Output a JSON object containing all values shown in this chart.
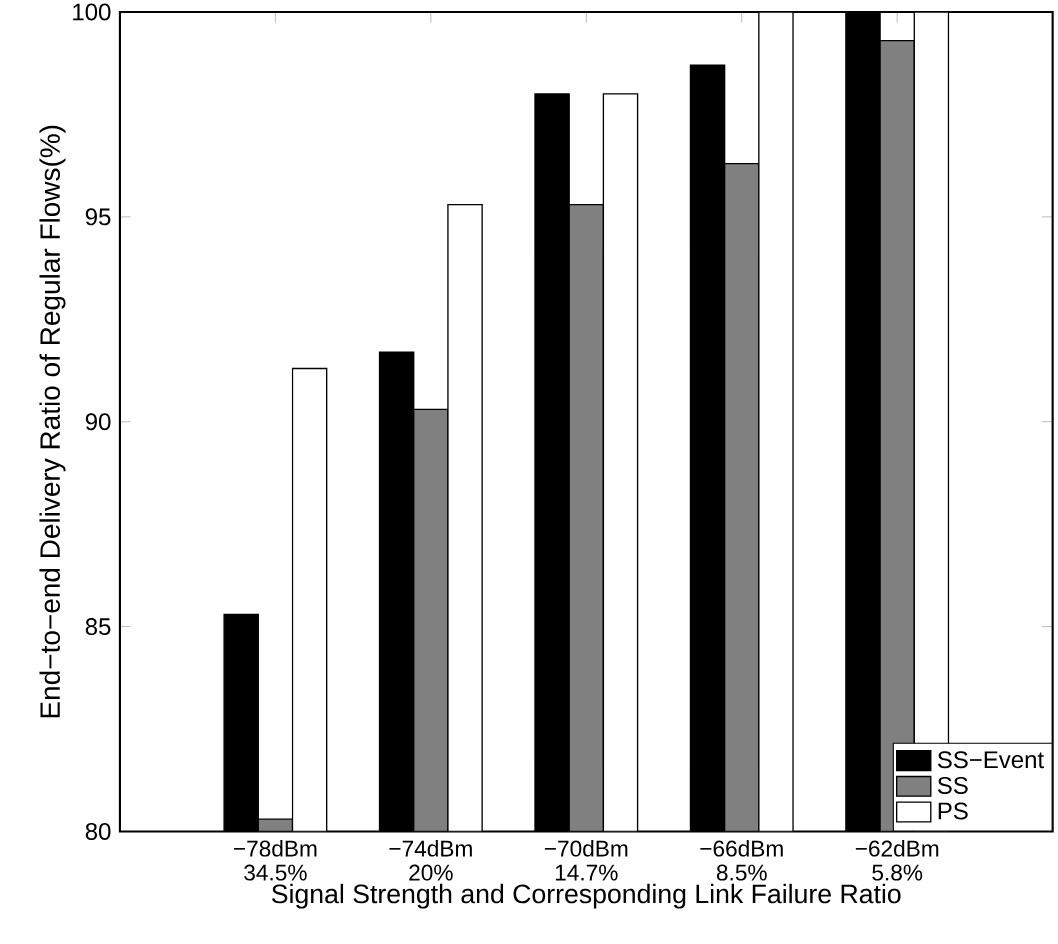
{
  "chart_data": {
    "type": "bar",
    "xlabel": "Signal Strength and Corresponding Link Failure Ratio",
    "ylabel": "End−to−end Delivery Ratio of Regular Flows(%)",
    "categories": [
      "−78dBm 34.5%",
      "−74dBm 20%",
      "−70dBm 14.7%",
      "−66dBm 8.5%",
      "−62dBm 5.8%"
    ],
    "series": [
      {
        "name": "SS−Event",
        "color": "#000000",
        "values": [
          85.3,
          91.7,
          98.0,
          98.7,
          100
        ]
      },
      {
        "name": "SS",
        "color": "#808080",
        "values": [
          80.3,
          90.3,
          95.3,
          96.3,
          99.3
        ]
      },
      {
        "name": "PS",
        "color": "#ffffff",
        "values": [
          91.3,
          95.3,
          98.0,
          100,
          100
        ]
      }
    ],
    "ylim": [
      80,
      100
    ],
    "yticks": [
      80,
      85,
      90,
      95,
      100
    ],
    "grid": false,
    "legend": "bottom right"
  }
}
